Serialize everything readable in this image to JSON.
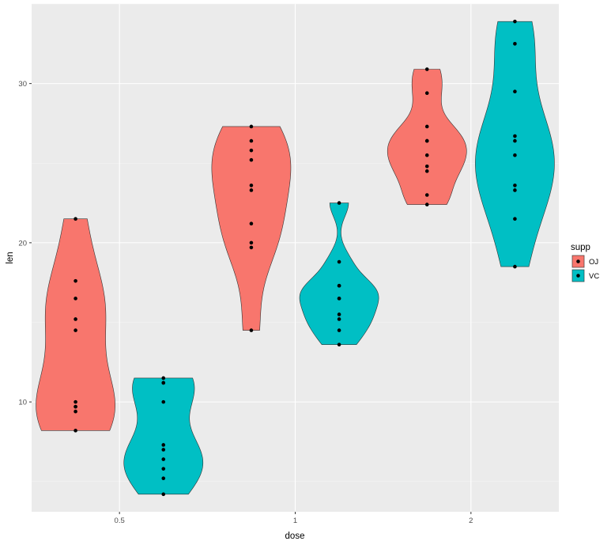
{
  "chart_data": {
    "type": "violin",
    "xlabel": "dose",
    "ylabel": "len",
    "x_ticks": [
      "0.5",
      "1",
      "2"
    ],
    "y_ticks": [
      10,
      20,
      30
    ],
    "ylim": [
      3.1,
      35.0
    ],
    "panel_background": "#ebebeb",
    "grid": true,
    "legend": {
      "title": "supp",
      "position": "right",
      "entries": [
        {
          "label": "OJ",
          "color": "#F8766D"
        },
        {
          "label": "VC",
          "color": "#00BFC4"
        }
      ]
    },
    "groups": [
      {
        "dose": "0.5",
        "supp": "OJ",
        "color": "#F8766D",
        "values": [
          15.2,
          21.5,
          17.6,
          9.7,
          14.5,
          10.0,
          8.2,
          9.4,
          16.5,
          9.7
        ]
      },
      {
        "dose": "0.5",
        "supp": "VC",
        "color": "#00BFC4",
        "values": [
          4.2,
          11.5,
          7.3,
          5.8,
          6.4,
          10.0,
          11.2,
          11.2,
          5.2,
          7.0
        ]
      },
      {
        "dose": "1",
        "supp": "OJ",
        "color": "#F8766D",
        "values": [
          19.7,
          23.3,
          23.6,
          26.4,
          20.0,
          25.2,
          25.8,
          21.2,
          14.5,
          27.3
        ]
      },
      {
        "dose": "1",
        "supp": "VC",
        "color": "#00BFC4",
        "values": [
          16.5,
          16.5,
          15.2,
          17.3,
          22.5,
          17.3,
          13.6,
          14.5,
          18.8,
          15.5
        ]
      },
      {
        "dose": "2",
        "supp": "OJ",
        "color": "#F8766D",
        "values": [
          25.5,
          26.4,
          22.4,
          24.5,
          24.8,
          30.9,
          26.4,
          27.3,
          29.4,
          23.0
        ]
      },
      {
        "dose": "2",
        "supp": "VC",
        "color": "#00BFC4",
        "values": [
          23.6,
          18.5,
          33.9,
          25.5,
          26.4,
          32.5,
          26.7,
          21.5,
          23.3,
          29.5
        ]
      }
    ]
  }
}
